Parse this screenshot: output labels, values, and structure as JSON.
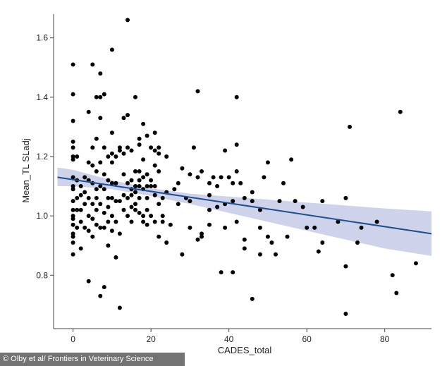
{
  "credit": "© Olby et al/ Frontiers in Veterinary Science",
  "colors": {
    "points": "#000000",
    "fit_line": "#1f4f8f",
    "ci_band": "#c5cae8",
    "axis": "#444444"
  },
  "chart_data": {
    "type": "scatter",
    "title": "",
    "xlabel": "CADES_total",
    "ylabel": "Mean_TL SLadj",
    "xlim": [
      -5,
      92
    ],
    "ylim": [
      0.62,
      1.68
    ],
    "xticks": [
      0,
      20,
      40,
      60,
      80
    ],
    "yticks": [
      0.8,
      1.0,
      1.2,
      1.4,
      1.6
    ],
    "x_tick_labels": [
      "0",
      "20",
      "40",
      "60",
      "80"
    ],
    "y_tick_labels": [
      "0.8",
      "1.0",
      "1.2",
      "1.4",
      "1.6"
    ],
    "grid": false,
    "legend": "none",
    "fit_line": {
      "x": [
        -4,
        92
      ],
      "y": [
        1.13,
        0.94
      ]
    },
    "confidence_band": {
      "x": [
        -4,
        0,
        10,
        20,
        30,
        40,
        50,
        60,
        70,
        80,
        92
      ],
      "lower": [
        1.1,
        1.1,
        1.09,
        1.067,
        1.04,
        1.01,
        0.98,
        0.95,
        0.92,
        0.89,
        0.865
      ],
      "upper": [
        1.163,
        1.155,
        1.12,
        1.093,
        1.075,
        1.065,
        1.055,
        1.045,
        1.035,
        1.025,
        1.015
      ]
    },
    "points": [
      [
        0,
        1.51
      ],
      [
        0,
        1.41
      ],
      [
        0,
        1.32
      ],
      [
        0,
        1.25
      ],
      [
        0,
        1.23
      ],
      [
        0,
        1.2
      ],
      [
        0,
        1.19
      ],
      [
        0,
        1.13
      ],
      [
        0,
        1.1
      ],
      [
        0,
        1.09
      ],
      [
        0,
        1.05
      ],
      [
        0,
        1.02
      ],
      [
        0,
        1.0
      ],
      [
        0,
        0.99
      ],
      [
        0,
        0.97
      ],
      [
        0,
        0.94
      ],
      [
        0,
        0.93
      ],
      [
        0,
        0.91
      ],
      [
        0,
        0.87
      ],
      [
        1,
        1.2
      ],
      [
        1,
        1.12
      ],
      [
        1,
        1.06
      ],
      [
        1,
        1.02
      ],
      [
        1,
        0.96
      ],
      [
        2,
        1.1
      ],
      [
        2,
        1.07
      ],
      [
        2,
        1.02
      ],
      [
        2,
        0.98
      ],
      [
        2,
        0.89
      ],
      [
        3,
        1.13
      ],
      [
        3,
        1.08
      ],
      [
        3,
        1.04
      ],
      [
        3,
        0.96
      ],
      [
        4,
        1.35
      ],
      [
        4,
        1.18
      ],
      [
        4,
        1.12
      ],
      [
        4,
        1.06
      ],
      [
        4,
        1.0
      ],
      [
        4,
        0.95
      ],
      [
        4,
        0.78
      ],
      [
        5,
        1.51
      ],
      [
        5,
        1.23
      ],
      [
        5,
        1.17
      ],
      [
        5,
        1.11
      ],
      [
        5,
        1.04
      ],
      [
        5,
        0.99
      ],
      [
        5,
        0.93
      ],
      [
        6,
        1.4
      ],
      [
        6,
        1.26
      ],
      [
        6,
        1.15
      ],
      [
        6,
        1.09
      ],
      [
        6,
        1.06
      ],
      [
        6,
        1.02
      ],
      [
        6,
        0.97
      ],
      [
        7,
        1.48
      ],
      [
        7,
        1.4
      ],
      [
        7,
        1.33
      ],
      [
        7,
        1.18
      ],
      [
        7,
        1.1
      ],
      [
        7,
        1.04
      ],
      [
        7,
        0.96
      ],
      [
        7,
        0.73
      ],
      [
        8,
        1.41
      ],
      [
        8,
        1.23
      ],
      [
        8,
        1.14
      ],
      [
        8,
        1.09
      ],
      [
        8,
        1.01
      ],
      [
        8,
        0.96
      ],
      [
        8,
        0.76
      ],
      [
        9,
        1.2
      ],
      [
        9,
        1.12
      ],
      [
        9,
        1.06
      ],
      [
        9,
        1.03
      ],
      [
        9,
        0.98
      ],
      [
        9,
        0.9
      ],
      [
        10,
        1.56
      ],
      [
        10,
        1.28
      ],
      [
        10,
        1.21
      ],
      [
        10,
        1.18
      ],
      [
        10,
        1.11
      ],
      [
        10,
        1.06
      ],
      [
        10,
        1.0
      ],
      [
        10,
        0.95
      ],
      [
        11,
        1.2
      ],
      [
        11,
        1.11
      ],
      [
        11,
        1.05
      ],
      [
        11,
        0.98
      ],
      [
        11,
        0.86
      ],
      [
        12,
        1.23
      ],
      [
        12,
        1.22
      ],
      [
        12,
        1.05
      ],
      [
        12,
        0.94
      ],
      [
        12,
        0.69
      ],
      [
        13,
        1.33
      ],
      [
        13,
        1.21
      ],
      [
        13,
        1.14
      ],
      [
        13,
        1.07
      ],
      [
        13,
        1.02
      ],
      [
        14,
        1.66
      ],
      [
        14,
        1.34
      ],
      [
        14,
        1.23
      ],
      [
        14,
        1.11
      ],
      [
        14,
        1.06
      ],
      [
        14,
        1.0
      ],
      [
        15,
        1.22
      ],
      [
        15,
        1.12
      ],
      [
        15,
        1.09
      ],
      [
        15,
        1.07
      ],
      [
        15,
        1.03
      ],
      [
        15,
        0.98
      ],
      [
        16,
        1.4
      ],
      [
        16,
        1.15
      ],
      [
        16,
        1.1
      ],
      [
        16,
        1.08
      ],
      [
        16,
        1.04
      ],
      [
        16,
        1.02
      ],
      [
        17,
        1.26
      ],
      [
        17,
        1.24
      ],
      [
        17,
        1.15
      ],
      [
        17,
        1.12
      ],
      [
        17,
        1.1
      ],
      [
        17,
        1.06
      ],
      [
        17,
        1.01
      ],
      [
        18,
        1.31
      ],
      [
        18,
        1.19
      ],
      [
        18,
        1.13
      ],
      [
        18,
        1.09
      ],
      [
        18,
        1.0
      ],
      [
        18,
        0.98
      ],
      [
        19,
        1.27
      ],
      [
        19,
        1.14
      ],
      [
        19,
        1.1
      ],
      [
        19,
        1.06
      ],
      [
        19,
        1.02
      ],
      [
        19,
        0.97
      ],
      [
        20,
        1.23
      ],
      [
        20,
        1.12
      ],
      [
        20,
        1.1
      ],
      [
        20,
        1.0
      ],
      [
        21,
        1.28
      ],
      [
        21,
        1.22
      ],
      [
        21,
        1.17
      ],
      [
        21,
        1.1
      ],
      [
        21,
        1.07
      ],
      [
        21,
        0.98
      ],
      [
        22,
        1.23
      ],
      [
        22,
        1.21
      ],
      [
        22,
        1.15
      ],
      [
        22,
        1.04
      ],
      [
        22,
        0.93
      ],
      [
        23,
        1.06
      ],
      [
        23,
        1.0
      ],
      [
        23,
        0.98
      ],
      [
        24,
        1.2
      ],
      [
        24,
        1.08
      ],
      [
        24,
        0.91
      ],
      [
        25,
        0.97
      ],
      [
        26,
        1.09
      ],
      [
        27,
        1.11
      ],
      [
        27,
        1.04
      ],
      [
        28,
        1.16
      ],
      [
        28,
        0.87
      ],
      [
        29,
        1.06
      ],
      [
        30,
        1.14
      ],
      [
        30,
        1.05
      ],
      [
        30,
        0.96
      ],
      [
        31,
        1.23
      ],
      [
        32,
        1.42
      ],
      [
        32,
        1.13
      ],
      [
        32,
        0.92
      ],
      [
        33,
        1.15
      ],
      [
        33,
        0.94
      ],
      [
        33,
        0.93
      ],
      [
        35,
        1.11
      ],
      [
        35,
        1.07
      ],
      [
        35,
        1.02
      ],
      [
        35,
        0.97
      ],
      [
        36,
        1.13
      ],
      [
        37,
        1.1
      ],
      [
        37,
        1.03
      ],
      [
        38,
        1.13
      ],
      [
        38,
        0.81
      ],
      [
        39,
        1.22
      ],
      [
        39,
        1.04
      ],
      [
        39,
        0.96
      ],
      [
        40,
        1.13
      ],
      [
        41,
        1.11
      ],
      [
        41,
        1.05
      ],
      [
        41,
        0.81
      ],
      [
        42,
        1.4
      ],
      [
        42,
        1.24
      ],
      [
        42,
        1.15
      ],
      [
        42,
        0.98
      ],
      [
        43,
        1.11
      ],
      [
        44,
        1.06
      ],
      [
        44,
        0.92
      ],
      [
        44,
        0.89
      ],
      [
        46,
        1.08
      ],
      [
        46,
        1.05
      ],
      [
        46,
        0.72
      ],
      [
        48,
        1.02
      ],
      [
        48,
        0.96
      ],
      [
        48,
        0.87
      ],
      [
        49,
        1.13
      ],
      [
        50,
        1.18
      ],
      [
        50,
        0.93
      ],
      [
        51,
        0.91
      ],
      [
        52,
        0.87
      ],
      [
        53,
        1.05
      ],
      [
        54,
        1.11
      ],
      [
        55,
        0.93
      ],
      [
        56,
        1.19
      ],
      [
        57,
        1.05
      ],
      [
        59,
        1.03
      ],
      [
        60,
        0.96
      ],
      [
        62,
        0.96
      ],
      [
        63,
        0.88
      ],
      [
        64,
        0.91
      ],
      [
        64,
        1.05
      ],
      [
        68,
        0.98
      ],
      [
        70,
        1.06
      ],
      [
        70,
        0.83
      ],
      [
        70,
        0.67
      ],
      [
        71,
        1.3
      ],
      [
        73,
        0.91
      ],
      [
        74,
        0.96
      ],
      [
        78,
        0.98
      ],
      [
        82,
        0.8
      ],
      [
        83,
        0.74
      ],
      [
        84,
        1.35
      ],
      [
        88,
        0.84
      ]
    ]
  }
}
